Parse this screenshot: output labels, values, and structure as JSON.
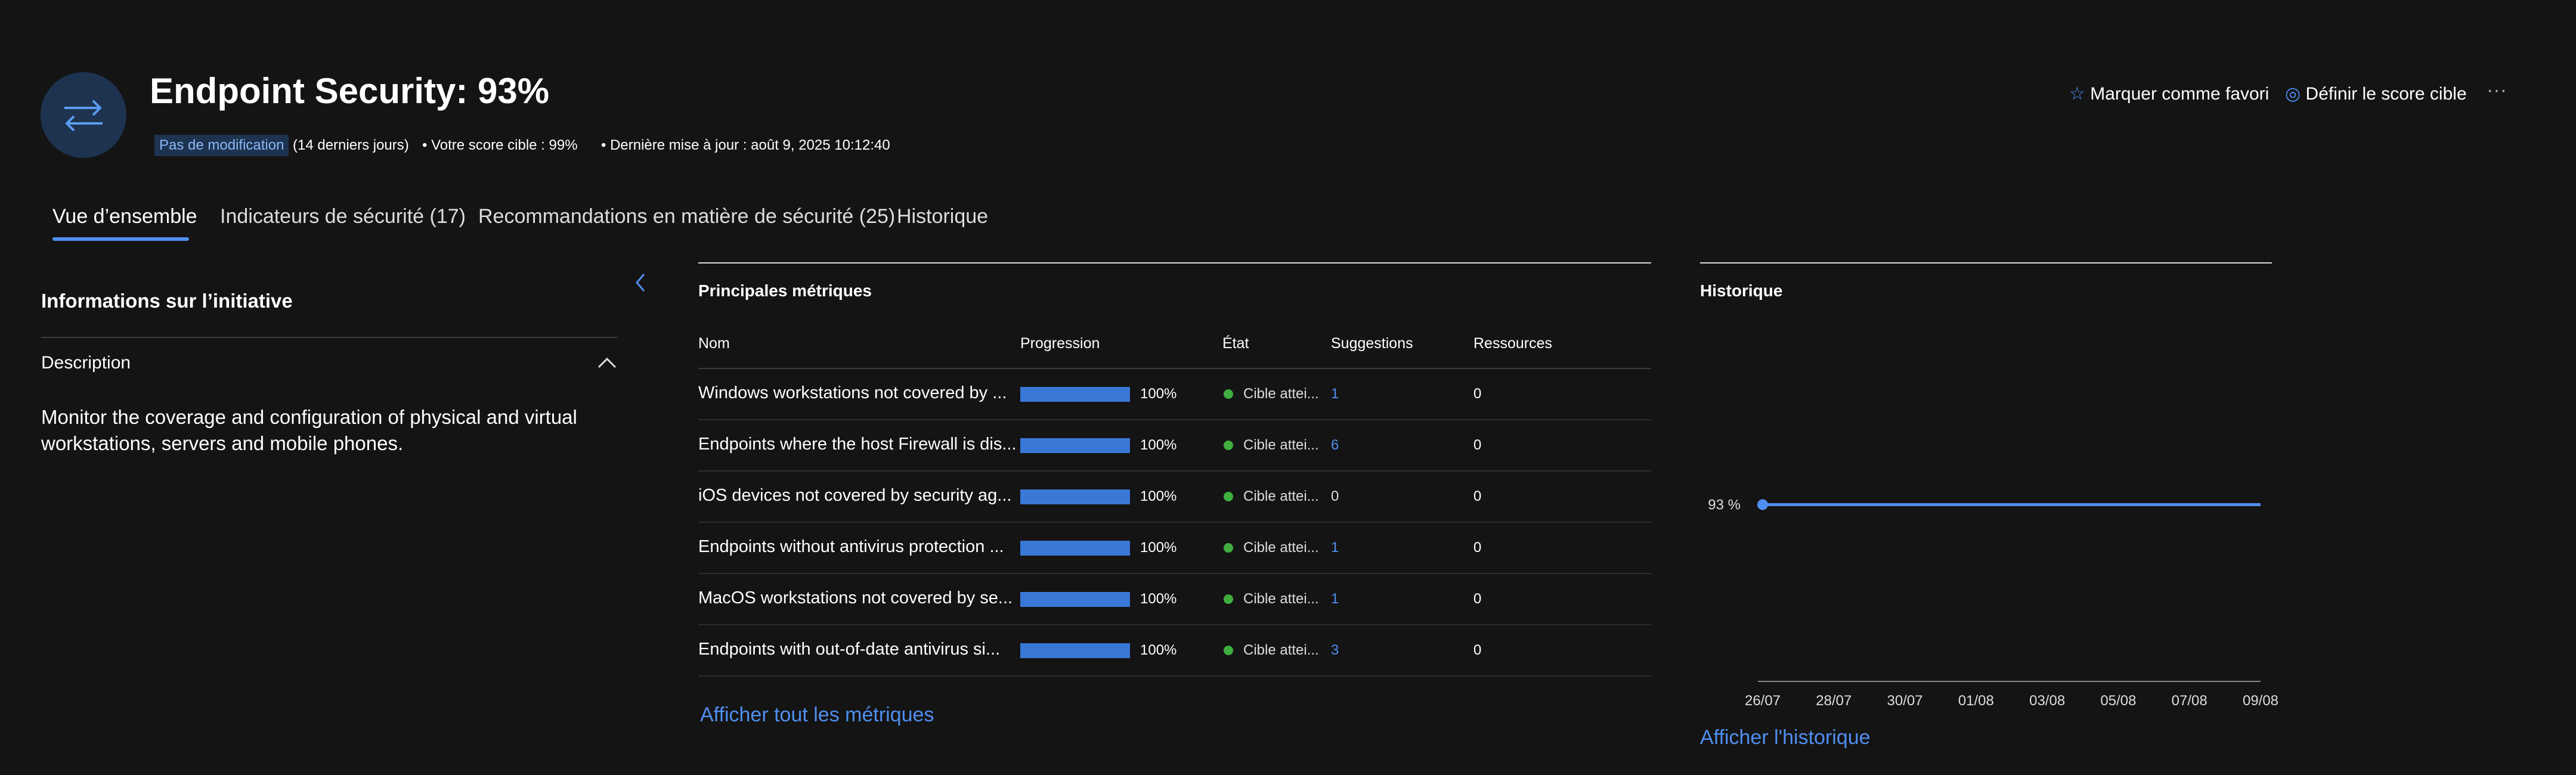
{
  "header": {
    "title": "Endpoint Security: 93%",
    "badge": "Pas de modification",
    "period": "(14 derniers jours)",
    "target": "Votre score cible : 99%",
    "updated": "Dernière mise à jour : août 9, 2025 10:12:40",
    "actions": [
      "Marquer comme favori",
      "Définir le score cible"
    ]
  },
  "tabs": [
    "Vue d’ensemble",
    "Indicateurs de sécurité (17)",
    "Recommandations en matière de sécurité (25)",
    "Historique"
  ],
  "info": {
    "title": "Informations sur l’initiative",
    "section": "Description",
    "text": "Monitor the coverage and configuration of physical and virtual workstations, servers and mobile phones."
  },
  "metrics": {
    "title": "Principales métriques",
    "columns": [
      "Nom",
      "Progression",
      "État",
      "Suggestions",
      "Ressources"
    ],
    "rows": [
      {
        "name": "Windows workstations not covered by ...",
        "progress": {
          "value": 100,
          "label": "100%"
        },
        "state": "Cible attei...",
        "suggestions": 1,
        "resources": 0
      },
      {
        "name": "Endpoints where the host Firewall is dis...",
        "progress": {
          "value": 100,
          "label": "100%"
        },
        "state": "Cible attei...",
        "suggestions": 6,
        "resources": 0
      },
      {
        "name": "iOS devices not covered by security ag...",
        "progress": {
          "value": 100,
          "label": "100%"
        },
        "state": "Cible attei...",
        "suggestions": 0,
        "resources": 0
      },
      {
        "name": "Endpoints without antivirus protection ...",
        "progress": {
          "value": 100,
          "label": "100%"
        },
        "state": "Cible attei...",
        "suggestions": 1,
        "resources": 0
      },
      {
        "name": "MacOS workstations not covered by se...",
        "progress": {
          "value": 100,
          "label": "100%"
        },
        "state": "Cible attei...",
        "suggestions": 1,
        "resources": 0
      },
      {
        "name": "Endpoints with out-of-date antivirus si...",
        "progress": {
          "value": 100,
          "label": "100%"
        },
        "state": "Cible attei...",
        "suggestions": 3,
        "resources": 0
      }
    ],
    "link": "Afficher tout les métriques"
  },
  "history": {
    "title": "Historique",
    "type": "line",
    "categories": [
      "26/07",
      "28/07",
      "30/07",
      "01/08",
      "03/08",
      "05/08",
      "07/08",
      "09/08"
    ],
    "values": [
      93,
      93,
      93,
      93,
      93,
      93,
      93,
      93
    ],
    "ylim": [
      86,
      100
    ],
    "yticks": [
      {
        "value": 93,
        "label": "93 %"
      }
    ],
    "color": "#4f8ff0",
    "link": "Afficher l'historique"
  }
}
